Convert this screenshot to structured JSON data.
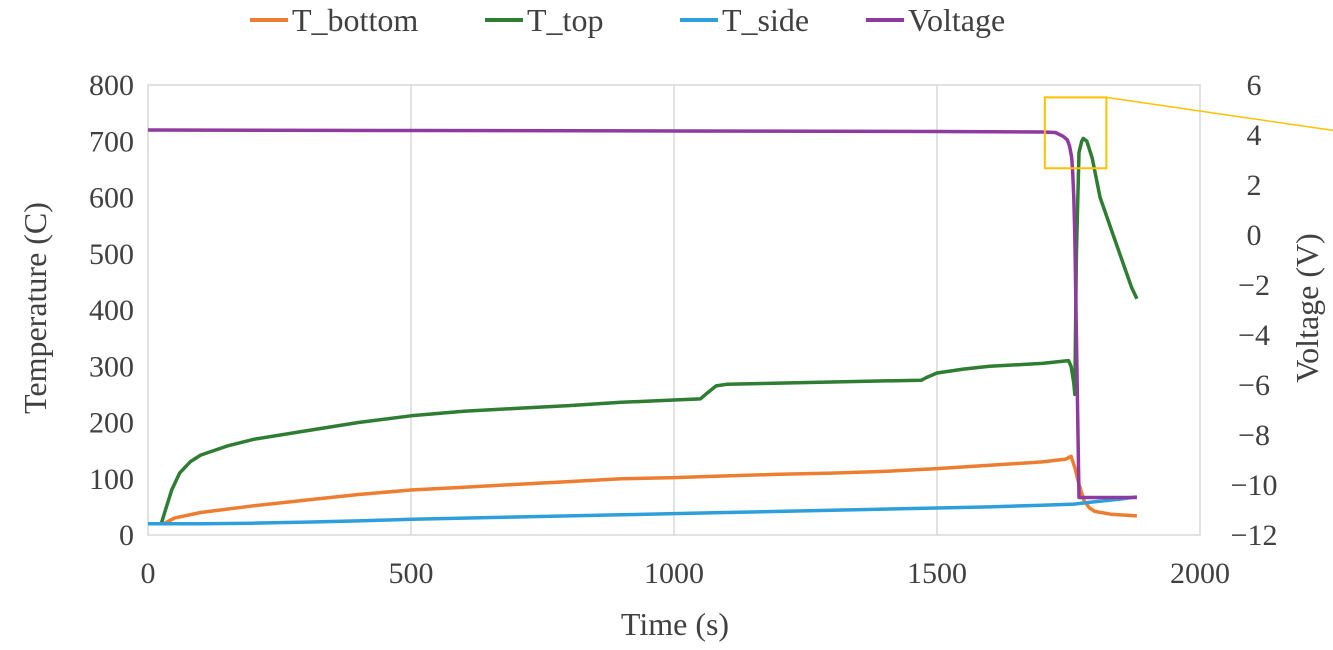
{
  "chart_data": {
    "type": "line",
    "title": "",
    "xlabel": "Time (s)",
    "ylabel": "Temperature (C)",
    "y2label": "Voltage (V)",
    "xlim": [
      0,
      2000
    ],
    "ylim": [
      0,
      800
    ],
    "y2lim": [
      -12,
      6
    ],
    "x_ticks": [
      0,
      500,
      1000,
      1500,
      2000
    ],
    "y_ticks": [
      0,
      100,
      200,
      300,
      400,
      500,
      600,
      700,
      800
    ],
    "y2_ticks": [
      -12,
      -10,
      -8,
      -6,
      -4,
      -2,
      0,
      2,
      4,
      6
    ],
    "grid": "vertical",
    "legend_position": "top",
    "series": [
      {
        "name": "T_bottom",
        "axis": "left",
        "color": "#ED7D31",
        "points": [
          [
            30,
            20
          ],
          [
            50,
            30
          ],
          [
            100,
            40
          ],
          [
            200,
            52
          ],
          [
            300,
            62
          ],
          [
            400,
            72
          ],
          [
            500,
            80
          ],
          [
            600,
            85
          ],
          [
            700,
            90
          ],
          [
            800,
            95
          ],
          [
            900,
            100
          ],
          [
            1000,
            102
          ],
          [
            1100,
            105
          ],
          [
            1200,
            108
          ],
          [
            1300,
            110
          ],
          [
            1400,
            113
          ],
          [
            1500,
            118
          ],
          [
            1600,
            124
          ],
          [
            1700,
            130
          ],
          [
            1745,
            135
          ],
          [
            1755,
            140
          ],
          [
            1762,
            120
          ],
          [
            1770,
            90
          ],
          [
            1780,
            60
          ],
          [
            1790,
            48
          ],
          [
            1800,
            42
          ],
          [
            1830,
            37
          ],
          [
            1880,
            34
          ]
        ]
      },
      {
        "name": "T_top",
        "axis": "left",
        "color": "#2E7D32",
        "points": [
          [
            25,
            20
          ],
          [
            35,
            50
          ],
          [
            45,
            80
          ],
          [
            60,
            110
          ],
          [
            80,
            130
          ],
          [
            100,
            142
          ],
          [
            150,
            158
          ],
          [
            200,
            170
          ],
          [
            300,
            185
          ],
          [
            400,
            200
          ],
          [
            500,
            212
          ],
          [
            600,
            220
          ],
          [
            700,
            225
          ],
          [
            800,
            230
          ],
          [
            900,
            236
          ],
          [
            1000,
            240
          ],
          [
            1050,
            242
          ],
          [
            1060,
            250
          ],
          [
            1080,
            265
          ],
          [
            1100,
            268
          ],
          [
            1200,
            270
          ],
          [
            1300,
            272
          ],
          [
            1400,
            274
          ],
          [
            1470,
            275
          ],
          [
            1480,
            280
          ],
          [
            1500,
            288
          ],
          [
            1550,
            295
          ],
          [
            1600,
            300
          ],
          [
            1700,
            305
          ],
          [
            1750,
            310
          ],
          [
            1755,
            300
          ],
          [
            1760,
            270
          ],
          [
            1762,
            250
          ],
          [
            1765,
            500
          ],
          [
            1770,
            680
          ],
          [
            1775,
            700
          ],
          [
            1778,
            705
          ],
          [
            1785,
            700
          ],
          [
            1795,
            670
          ],
          [
            1810,
            600
          ],
          [
            1840,
            520
          ],
          [
            1870,
            440
          ],
          [
            1880,
            420
          ]
        ]
      },
      {
        "name": "T_side",
        "axis": "left",
        "color": "#2E9FDA",
        "points": [
          [
            0,
            20
          ],
          [
            100,
            20
          ],
          [
            200,
            21
          ],
          [
            300,
            23
          ],
          [
            400,
            25
          ],
          [
            500,
            28
          ],
          [
            600,
            30
          ],
          [
            700,
            32
          ],
          [
            800,
            34
          ],
          [
            900,
            36
          ],
          [
            1000,
            38
          ],
          [
            1100,
            40
          ],
          [
            1200,
            42
          ],
          [
            1300,
            44
          ],
          [
            1400,
            46
          ],
          [
            1500,
            48
          ],
          [
            1600,
            50
          ],
          [
            1700,
            53
          ],
          [
            1760,
            55
          ],
          [
            1800,
            59
          ],
          [
            1850,
            64
          ],
          [
            1880,
            68
          ]
        ]
      },
      {
        "name": "Voltage",
        "axis": "right",
        "color": "#8E3A9E",
        "points": [
          [
            0,
            4.2
          ],
          [
            500,
            4.18
          ],
          [
            1000,
            4.16
          ],
          [
            1500,
            4.14
          ],
          [
            1700,
            4.12
          ],
          [
            1725,
            4.1
          ],
          [
            1740,
            3.95
          ],
          [
            1748,
            3.8
          ],
          [
            1752,
            3.55
          ],
          [
            1756,
            3.1
          ],
          [
            1758,
            2.5
          ],
          [
            1760,
            1.5
          ],
          [
            1762,
            0.0
          ],
          [
            1765,
            -4.0
          ],
          [
            1768,
            -8.0
          ],
          [
            1770,
            -10.5
          ],
          [
            1800,
            -10.5
          ],
          [
            1880,
            -10.5
          ]
        ]
      }
    ],
    "highlight_box": {
      "x": [
        1705,
        1822
      ],
      "y": [
        652,
        778
      ],
      "color": "#FFC000"
    }
  }
}
